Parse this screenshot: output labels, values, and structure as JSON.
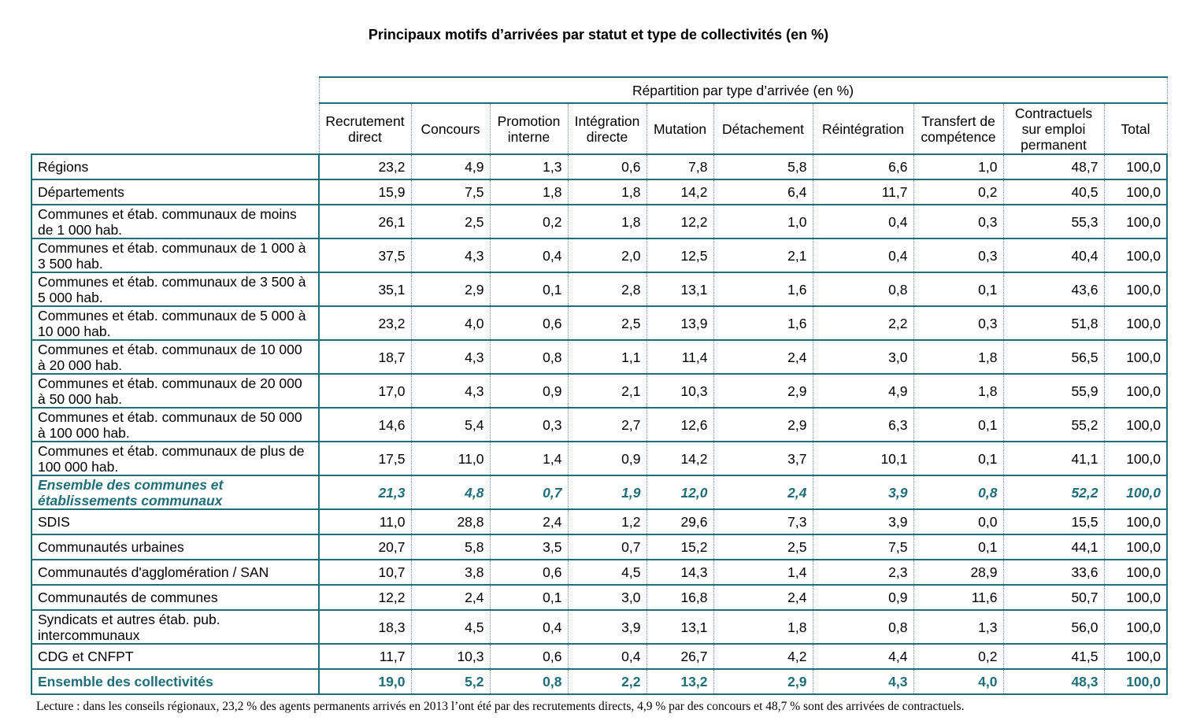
{
  "title": "Principaux motifs d’arrivées par statut et type de collectivités (en %)",
  "group_header": "Répartition par type d’arrivée (en %)",
  "columns": [
    "Recrutement direct",
    "Concours",
    "Promotion interne",
    "Intégration directe",
    "Mutation",
    "Détachement",
    "Réintégration",
    "Transfert de compétence",
    "Contractuels sur emploi permanent",
    "Total"
  ],
  "rows": [
    {
      "label": "Régions",
      "values": [
        "23,2",
        "4,9",
        "1,3",
        "0,6",
        "7,8",
        "5,8",
        "6,6",
        "1,0",
        "48,7",
        "100,0"
      ]
    },
    {
      "label": "Départements",
      "values": [
        "15,9",
        "7,5",
        "1,8",
        "1,8",
        "14,2",
        "6,4",
        "11,7",
        "0,2",
        "40,5",
        "100,0"
      ]
    },
    {
      "label": "Communes et étab. communaux de moins de 1 000 hab.",
      "values": [
        "26,1",
        "2,5",
        "0,2",
        "1,8",
        "12,2",
        "1,0",
        "0,4",
        "0,3",
        "55,3",
        "100,0"
      ]
    },
    {
      "label": "Communes et étab. communaux de 1 000 à 3 500 hab.",
      "values": [
        "37,5",
        "4,3",
        "0,4",
        "2,0",
        "12,5",
        "2,1",
        "0,4",
        "0,3",
        "40,4",
        "100,0"
      ]
    },
    {
      "label": "Communes et étab. communaux de 3 500 à 5 000 hab.",
      "values": [
        "35,1",
        "2,9",
        "0,1",
        "2,8",
        "13,1",
        "1,6",
        "0,8",
        "0,1",
        "43,6",
        "100,0"
      ]
    },
    {
      "label": "Communes et étab. communaux de 5 000 à 10 000 hab.",
      "values": [
        "23,2",
        "4,0",
        "0,6",
        "2,5",
        "13,9",
        "1,6",
        "2,2",
        "0,3",
        "51,8",
        "100,0"
      ]
    },
    {
      "label": "Communes et étab. communaux de 10 000 à 20 000 hab.",
      "values": [
        "18,7",
        "4,3",
        "0,8",
        "1,1",
        "11,4",
        "2,4",
        "3,0",
        "1,8",
        "56,5",
        "100,0"
      ]
    },
    {
      "label": "Communes et étab. communaux de 20 000 à 50 000 hab.",
      "values": [
        "17,0",
        "4,3",
        "0,9",
        "2,1",
        "10,3",
        "2,9",
        "4,9",
        "1,8",
        "55,9",
        "100,0"
      ]
    },
    {
      "label": "Communes et étab. communaux de 50 000 à 100 000 hab.",
      "values": [
        "14,6",
        "5,4",
        "0,3",
        "2,7",
        "12,6",
        "2,9",
        "6,3",
        "0,1",
        "55,2",
        "100,0"
      ]
    },
    {
      "label": "Communes et étab. communaux de plus de 100 000 hab.",
      "values": [
        "17,5",
        "11,0",
        "1,4",
        "0,9",
        "14,2",
        "3,7",
        "10,1",
        "0,1",
        "41,1",
        "100,0"
      ]
    },
    {
      "label": "Ensemble des communes et établissements communaux",
      "values": [
        "21,3",
        "4,8",
        "0,7",
        "1,9",
        "12,0",
        "2,4",
        "3,9",
        "0,8",
        "52,2",
        "100,0"
      ],
      "style": "subtotal"
    },
    {
      "label": "SDIS",
      "values": [
        "11,0",
        "28,8",
        "2,4",
        "1,2",
        "29,6",
        "7,3",
        "3,9",
        "0,0",
        "15,5",
        "100,0"
      ]
    },
    {
      "label": "Communautés urbaines",
      "values": [
        "20,7",
        "5,8",
        "3,5",
        "0,7",
        "15,2",
        "2,5",
        "7,5",
        "0,1",
        "44,1",
        "100,0"
      ]
    },
    {
      "label": "Communautés d'agglomération / SAN",
      "values": [
        "10,7",
        "3,8",
        "0,6",
        "4,5",
        "14,3",
        "1,4",
        "2,3",
        "28,9",
        "33,6",
        "100,0"
      ]
    },
    {
      "label": "Communautés de communes",
      "values": [
        "12,2",
        "2,4",
        "0,1",
        "3,0",
        "16,8",
        "2,4",
        "0,9",
        "11,6",
        "50,7",
        "100,0"
      ]
    },
    {
      "label": "Syndicats et autres étab. pub. intercommunaux",
      "values": [
        "18,3",
        "4,5",
        "0,4",
        "3,9",
        "13,1",
        "1,8",
        "0,8",
        "1,3",
        "56,0",
        "100,0"
      ]
    },
    {
      "label": "CDG et CNFPT",
      "values": [
        "11,7",
        "10,3",
        "0,6",
        "0,4",
        "26,7",
        "4,2",
        "4,4",
        "0,2",
        "41,5",
        "100,0"
      ]
    },
    {
      "label": "Ensemble des collectivités",
      "values": [
        "19,0",
        "5,2",
        "0,8",
        "2,2",
        "13,2",
        "2,9",
        "4,3",
        "4,0",
        "48,3",
        "100,0"
      ],
      "style": "total"
    }
  ],
  "footnote": "Lecture : dans les conseils régionaux, 23,2 % des agents permanents arrivés en 2013 l’ont été par des recrutements directs, 4,9 % par des concours et 48,7 % sont des arrivées de contractuels.",
  "colors": {
    "accent": "#1e6e78"
  }
}
